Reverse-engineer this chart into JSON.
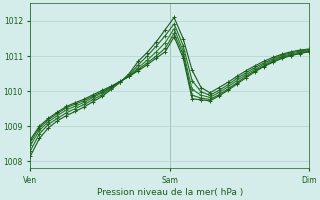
{
  "xlabel": "Pression niveau de la mer( hPa )",
  "bg_color": "#d4ecea",
  "grid_color": "#b0d4d0",
  "line_colors": [
    "#1a5c1a",
    "#236b23",
    "#2a7a2a",
    "#236b23",
    "#1a5c1a"
  ],
  "ylim": [
    1007.8,
    1012.5
  ],
  "yticks": [
    1008,
    1009,
    1010,
    1011,
    1012
  ],
  "xtick_labels": [
    "Ven",
    "Sam",
    "Dim"
  ],
  "xtick_positions": [
    0,
    96,
    192
  ],
  "x_total": 192,
  "series": [
    [
      1008.15,
      1008.65,
      1008.95,
      1009.15,
      1009.3,
      1009.42,
      1009.55,
      1009.7,
      1009.85,
      1010.05,
      1010.25,
      1010.5,
      1010.85,
      1011.1,
      1011.4,
      1011.75,
      1012.1,
      1011.5,
      1010.6,
      1010.1,
      1009.95,
      1010.1,
      1010.25,
      1010.42,
      1010.58,
      1010.72,
      1010.85,
      1010.96,
      1011.05,
      1011.12,
      1011.17,
      1011.2
    ],
    [
      1008.3,
      1008.78,
      1009.05,
      1009.22,
      1009.38,
      1009.5,
      1009.62,
      1009.76,
      1009.9,
      1010.08,
      1010.26,
      1010.46,
      1010.75,
      1011.0,
      1011.28,
      1011.58,
      1011.92,
      1011.3,
      1010.3,
      1009.98,
      1009.88,
      1010.02,
      1010.18,
      1010.36,
      1010.52,
      1010.67,
      1010.8,
      1010.92,
      1011.02,
      1011.09,
      1011.14,
      1011.18
    ],
    [
      1008.45,
      1008.88,
      1009.12,
      1009.3,
      1009.46,
      1009.57,
      1009.68,
      1009.82,
      1009.95,
      1010.1,
      1010.27,
      1010.43,
      1010.67,
      1010.88,
      1011.12,
      1011.38,
      1011.78,
      1011.15,
      1010.05,
      1009.88,
      1009.82,
      1009.96,
      1010.12,
      1010.3,
      1010.47,
      1010.62,
      1010.76,
      1010.88,
      1010.99,
      1011.06,
      1011.11,
      1011.16
    ],
    [
      1008.55,
      1008.95,
      1009.18,
      1009.36,
      1009.52,
      1009.63,
      1009.73,
      1009.86,
      1009.98,
      1010.12,
      1010.27,
      1010.42,
      1010.62,
      1010.8,
      1011.0,
      1011.22,
      1011.65,
      1011.05,
      1009.88,
      1009.8,
      1009.76,
      1009.9,
      1010.06,
      1010.24,
      1010.42,
      1010.58,
      1010.72,
      1010.85,
      1010.96,
      1011.03,
      1011.08,
      1011.14
    ],
    [
      1008.62,
      1009.0,
      1009.22,
      1009.4,
      1009.56,
      1009.67,
      1009.77,
      1009.9,
      1010.02,
      1010.14,
      1010.28,
      1010.42,
      1010.58,
      1010.75,
      1010.94,
      1011.12,
      1011.55,
      1010.95,
      1009.78,
      1009.75,
      1009.72,
      1009.86,
      1010.02,
      1010.2,
      1010.38,
      1010.55,
      1010.7,
      1010.82,
      1010.93,
      1011.01,
      1011.07,
      1011.12
    ]
  ]
}
